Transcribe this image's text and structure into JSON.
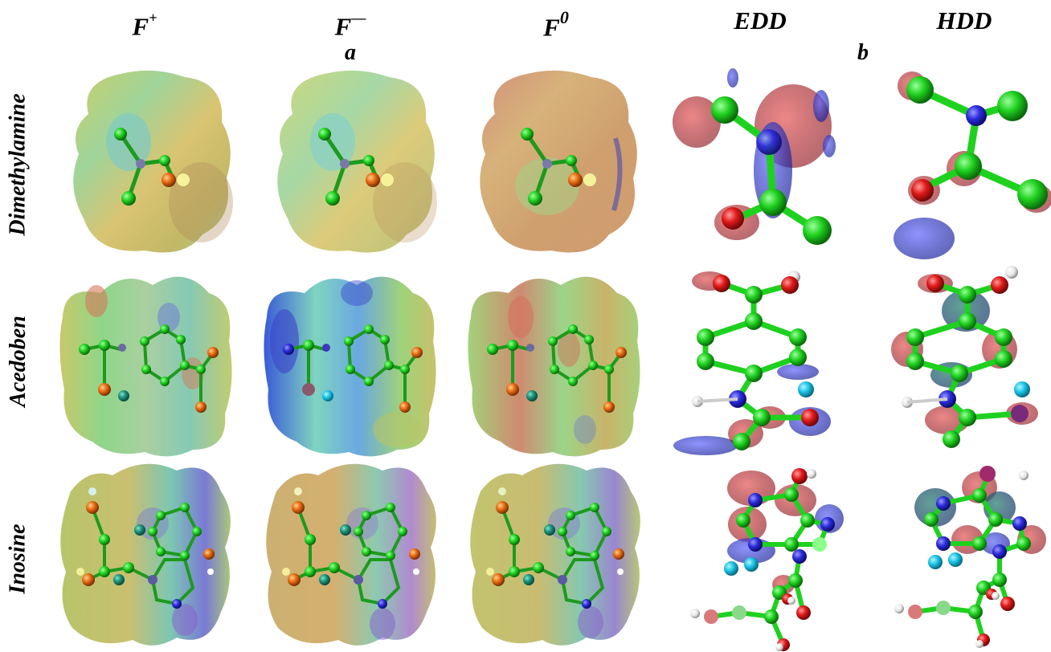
{
  "columns": [
    {
      "base": "F",
      "sup": "+"
    },
    {
      "base": "F",
      "sup": "—"
    },
    {
      "base": "F",
      "sup": "0"
    },
    {
      "base": "EDD",
      "sup": ""
    },
    {
      "base": "HDD",
      "sup": ""
    }
  ],
  "panels": {
    "a": "a",
    "b": "b"
  },
  "rows": [
    "Dimethylamine",
    "Acedoben",
    "Inosine"
  ],
  "colors": {
    "carbon": "#1fd11f",
    "nitrogen": "#2b2bdc",
    "oxygen": "#e01818",
    "hydrogen": "#f2f2f2",
    "positive_lobe": "#b8141f",
    "negative_lobe": "#2028c8",
    "cyan_atom": "#18c4e6"
  }
}
